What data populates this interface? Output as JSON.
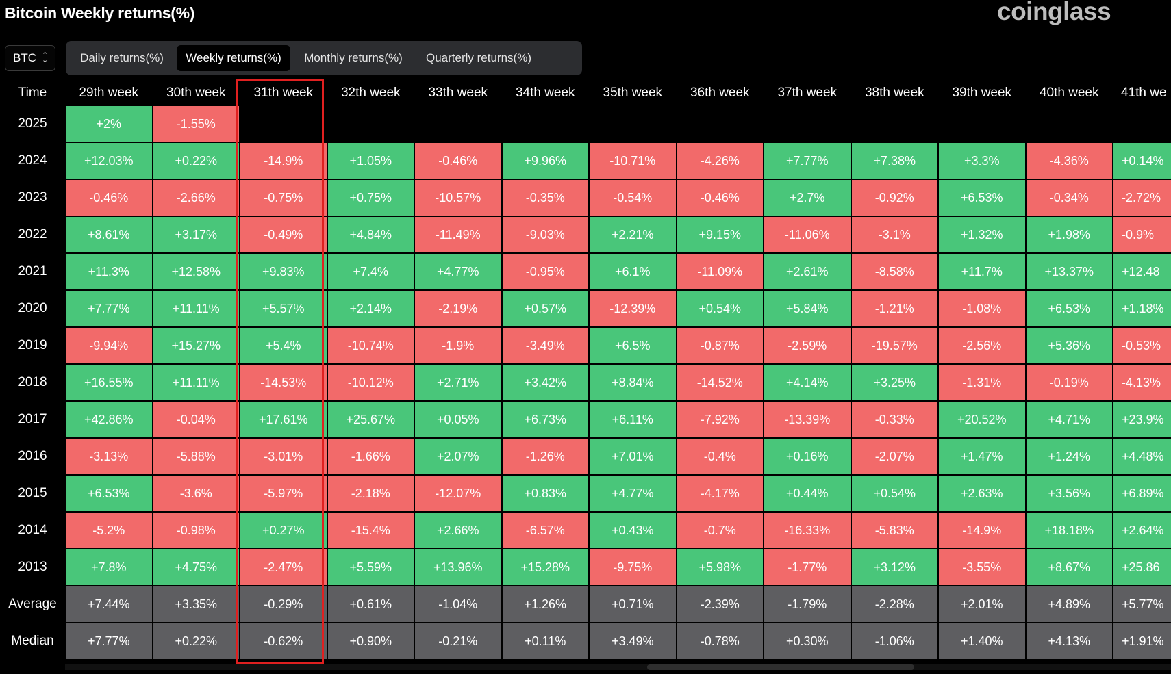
{
  "title": "Bitcoin Weekly returns(%)",
  "brand": "coinglass",
  "asset_selector": {
    "value": "BTC",
    "icon": "chevron-updown-icon"
  },
  "tabs": [
    {
      "label": "Daily returns(%)",
      "active": false
    },
    {
      "label": "Weekly returns(%)",
      "active": true
    },
    {
      "label": "Monthly returns(%)",
      "active": false
    },
    {
      "label": "Quarterly returns(%)",
      "active": false
    }
  ],
  "colors": {
    "positive": "#49c67a",
    "negative": "#f26a6a",
    "stat": "#5e5e61",
    "highlight": "#e02020"
  },
  "highlighted_column": "31th week",
  "table": {
    "time_header": "Time",
    "columns": [
      "29th week",
      "30th week",
      "31th week",
      "32th week",
      "33th week",
      "34th week",
      "35th week",
      "36th week",
      "37th week",
      "38th week",
      "39th week",
      "40th week",
      "41th we"
    ],
    "rows": [
      {
        "label": "2025",
        "values": [
          "+2%",
          "-1.55%",
          "",
          "",
          "",
          "",
          "",
          "",
          "",
          "",
          "",
          "",
          ""
        ]
      },
      {
        "label": "2024",
        "values": [
          "+12.03%",
          "+0.22%",
          "-14.9%",
          "+1.05%",
          "-0.46%",
          "+9.96%",
          "-10.71%",
          "-4.26%",
          "+7.77%",
          "+7.38%",
          "+3.3%",
          "-4.36%",
          "+0.14%"
        ]
      },
      {
        "label": "2023",
        "values": [
          "-0.46%",
          "-2.66%",
          "-0.75%",
          "+0.75%",
          "-10.57%",
          "-0.35%",
          "-0.54%",
          "-0.46%",
          "+2.7%",
          "-0.92%",
          "+6.53%",
          "-0.34%",
          "-2.72%"
        ]
      },
      {
        "label": "2022",
        "values": [
          "+8.61%",
          "+3.17%",
          "-0.49%",
          "+4.84%",
          "-11.49%",
          "-9.03%",
          "+2.21%",
          "+9.15%",
          "-11.06%",
          "-3.1%",
          "+1.32%",
          "+1.98%",
          "-0.9%"
        ]
      },
      {
        "label": "2021",
        "values": [
          "+11.3%",
          "+12.58%",
          "+9.83%",
          "+7.4%",
          "+4.77%",
          "-0.95%",
          "+6.1%",
          "-11.09%",
          "+2.61%",
          "-8.58%",
          "+11.7%",
          "+13.37%",
          "+12.48"
        ]
      },
      {
        "label": "2020",
        "values": [
          "+7.77%",
          "+11.11%",
          "+5.57%",
          "+2.14%",
          "-2.19%",
          "+0.57%",
          "-12.39%",
          "+0.54%",
          "+5.84%",
          "-1.21%",
          "-1.08%",
          "+6.53%",
          "+1.18%"
        ]
      },
      {
        "label": "2019",
        "values": [
          "-9.94%",
          "+15.27%",
          "+5.4%",
          "-10.74%",
          "-1.9%",
          "-3.49%",
          "+6.5%",
          "-0.87%",
          "-2.59%",
          "-19.57%",
          "-2.56%",
          "+5.36%",
          "-0.53%"
        ]
      },
      {
        "label": "2018",
        "values": [
          "+16.55%",
          "+11.11%",
          "-14.53%",
          "-10.12%",
          "+2.71%",
          "+3.42%",
          "+8.84%",
          "-14.52%",
          "+4.14%",
          "+3.25%",
          "-1.31%",
          "-0.19%",
          "-4.13%"
        ]
      },
      {
        "label": "2017",
        "values": [
          "+42.86%",
          "-0.04%",
          "+17.61%",
          "+25.67%",
          "+0.05%",
          "+6.73%",
          "+6.11%",
          "-7.92%",
          "-13.39%",
          "-0.33%",
          "+20.52%",
          "+4.71%",
          "+23.9%"
        ]
      },
      {
        "label": "2016",
        "values": [
          "-3.13%",
          "-5.88%",
          "-3.01%",
          "-1.66%",
          "+2.07%",
          "-1.26%",
          "+7.01%",
          "-0.4%",
          "+0.16%",
          "-2.07%",
          "+1.47%",
          "+1.24%",
          "+4.48%"
        ]
      },
      {
        "label": "2015",
        "values": [
          "+6.53%",
          "-3.6%",
          "-5.97%",
          "-2.18%",
          "-12.07%",
          "+0.83%",
          "+4.77%",
          "-4.17%",
          "+0.44%",
          "+0.54%",
          "+2.63%",
          "+3.56%",
          "+6.89%"
        ]
      },
      {
        "label": "2014",
        "values": [
          "-5.2%",
          "-0.98%",
          "+0.27%",
          "-15.4%",
          "+2.66%",
          "-6.57%",
          "+0.43%",
          "-0.7%",
          "-16.33%",
          "-5.83%",
          "-14.9%",
          "+18.18%",
          "+2.64%"
        ]
      },
      {
        "label": "2013",
        "values": [
          "+7.8%",
          "+4.75%",
          "-2.47%",
          "+5.59%",
          "+13.96%",
          "+15.28%",
          "-9.75%",
          "+5.98%",
          "-1.77%",
          "+3.12%",
          "-3.55%",
          "+8.67%",
          "+25.86"
        ]
      }
    ],
    "stats": [
      {
        "label": "Average",
        "values": [
          "+7.44%",
          "+3.35%",
          "-0.29%",
          "+0.61%",
          "-1.04%",
          "+1.26%",
          "+0.71%",
          "-2.39%",
          "-1.79%",
          "-2.28%",
          "+2.01%",
          "+4.89%",
          "+5.77%"
        ]
      },
      {
        "label": "Median",
        "values": [
          "+7.77%",
          "+0.22%",
          "-0.62%",
          "+0.90%",
          "-0.21%",
          "+0.11%",
          "+3.49%",
          "-0.78%",
          "+0.30%",
          "-1.06%",
          "+1.40%",
          "+4.13%",
          "+1.91%"
        ]
      }
    ]
  }
}
